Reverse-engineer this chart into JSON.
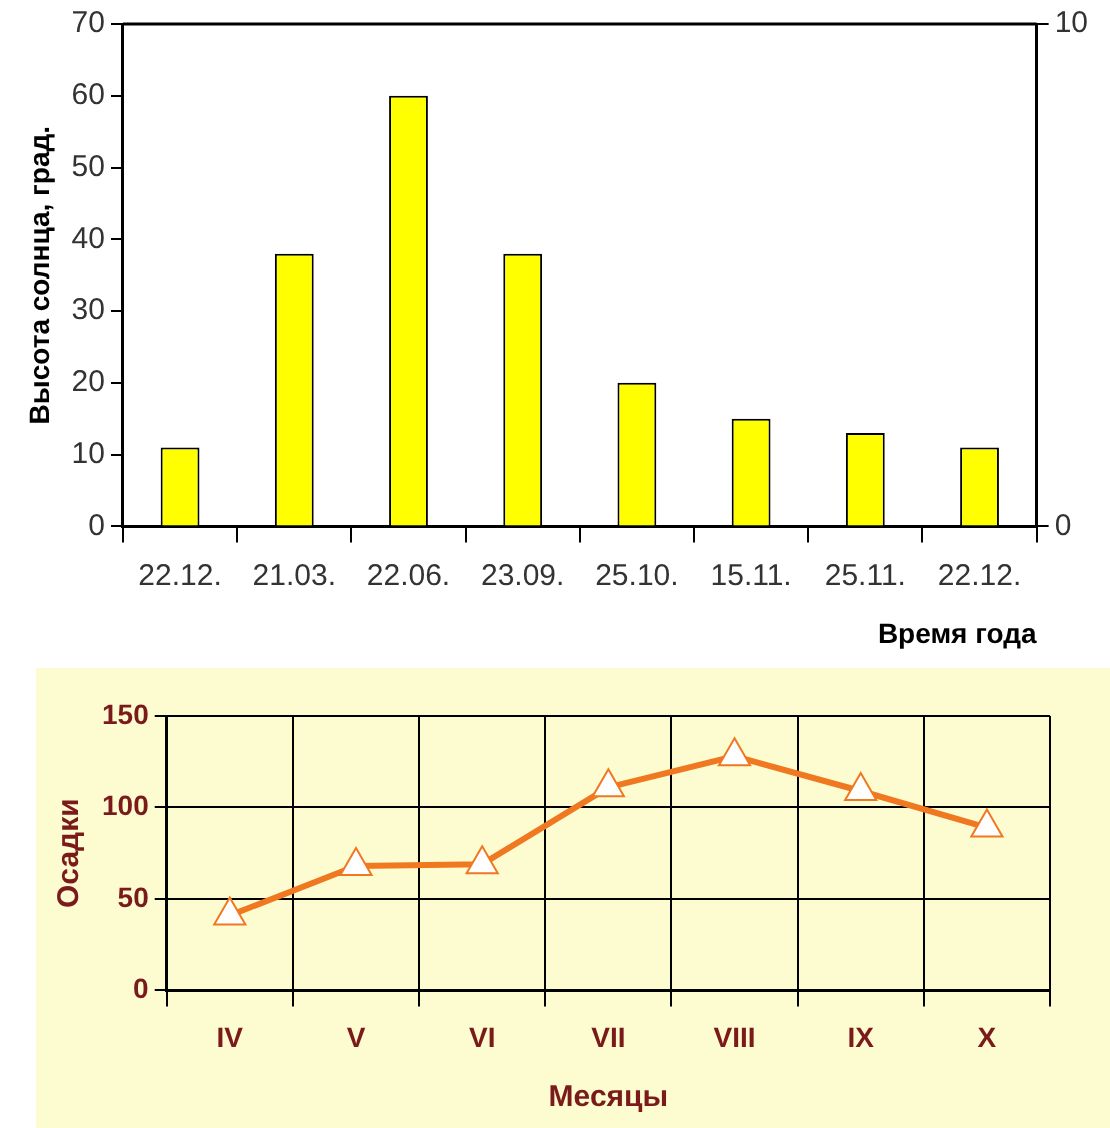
{
  "chart_data": [
    {
      "type": "bar",
      "xlabel": "Время года",
      "ylabel": "Высота солнца, град.",
      "categories": [
        "22.12.",
        "21.03.",
        "22.06.",
        "23.09.",
        "25.10.",
        "15.11.",
        "25.11.",
        "22.12."
      ],
      "values": [
        11,
        38,
        60,
        38,
        20,
        15,
        13,
        11
      ],
      "color": "#ffff00",
      "ylim": [
        0,
        70
      ],
      "yticks": [
        0,
        10,
        20,
        30,
        40,
        50,
        60,
        70
      ],
      "y2lim": [
        0,
        10
      ],
      "y2ticks": [
        0,
        10
      ],
      "grid": false,
      "legend": false
    },
    {
      "type": "line",
      "xlabel": "Месяцы",
      "ylabel": "Осадки",
      "categories": [
        "IV",
        "V",
        "VI",
        "VII",
        "VIII",
        "IX",
        "X"
      ],
      "values": [
        41,
        68,
        69,
        111,
        128,
        109,
        89
      ],
      "color": "#f07820",
      "ylim": [
        0,
        150
      ],
      "yticks": [
        0,
        50,
        100,
        150
      ],
      "grid": true,
      "legend": false,
      "marker": "triangle"
    }
  ]
}
